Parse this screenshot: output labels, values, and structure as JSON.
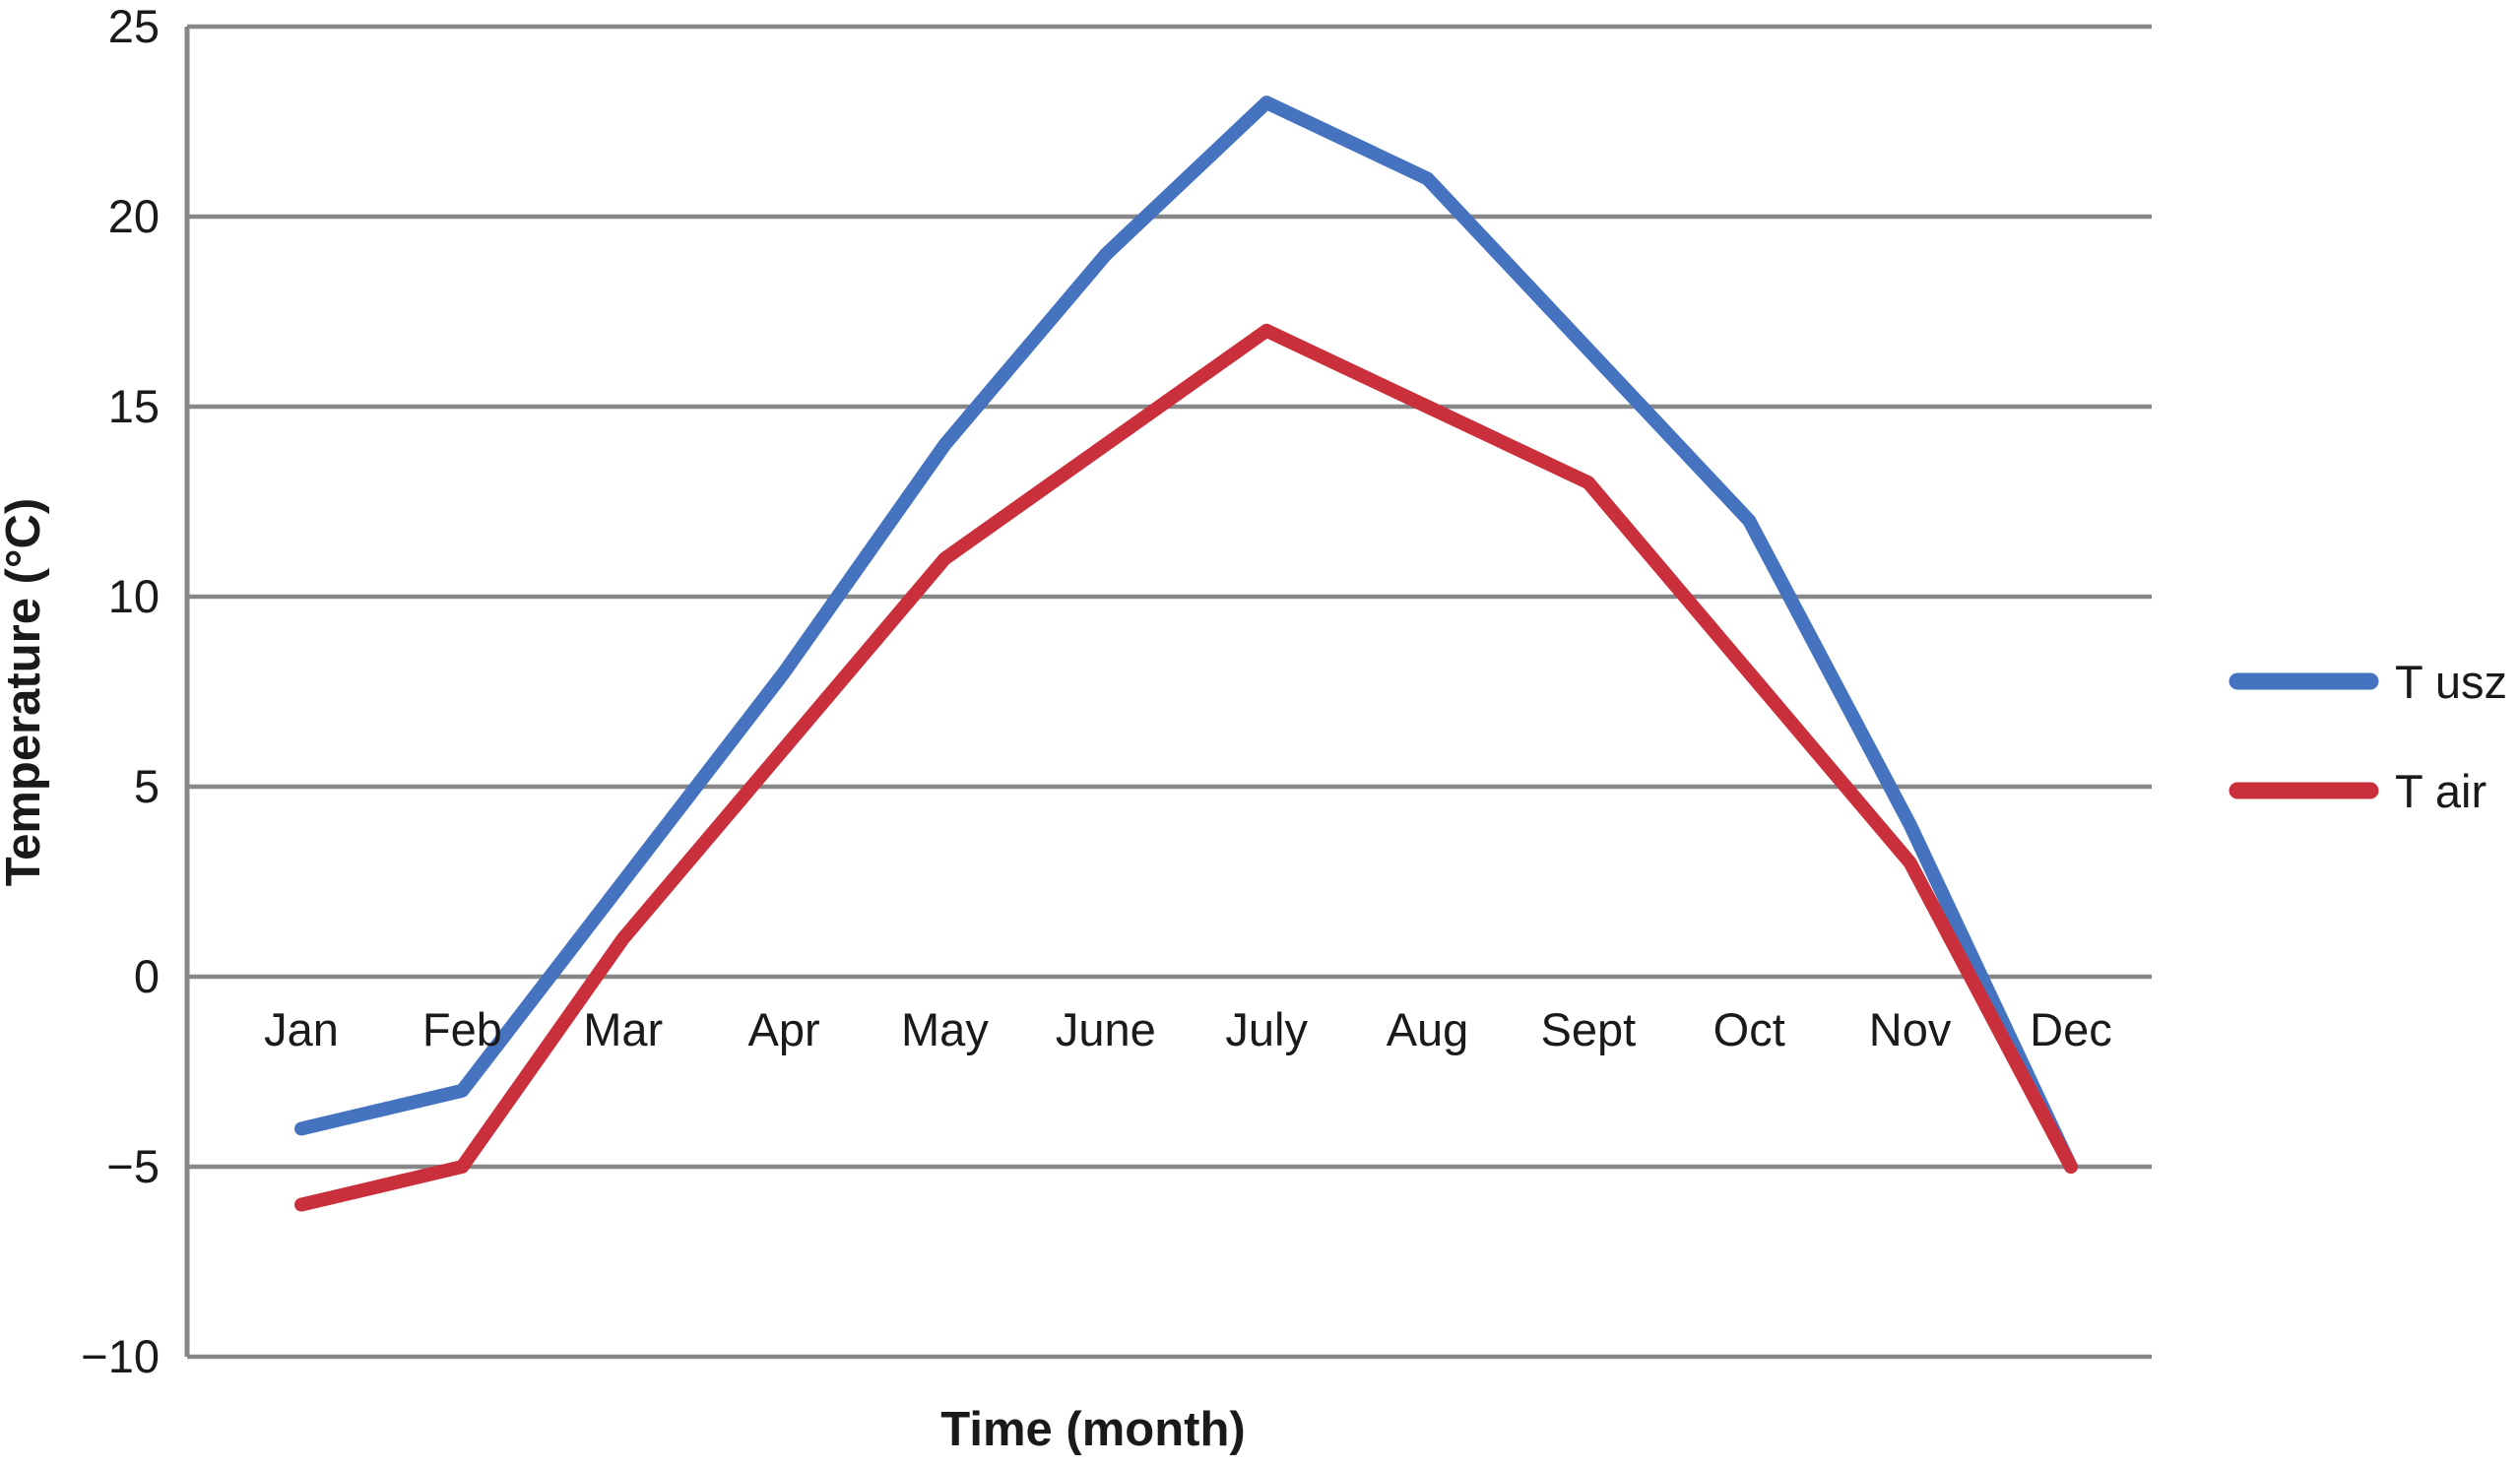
{
  "chart_data": {
    "type": "line",
    "title": "",
    "xlabel": "Time (month)",
    "ylabel": "Temperature (°C)",
    "categories": [
      "Jan",
      "Feb",
      "Mar",
      "Apr",
      "May",
      "June",
      "July",
      "Aug",
      "Sept",
      "Oct",
      "Nov",
      "Dec"
    ],
    "series": [
      {
        "name": "T usz",
        "color": "#4573bf",
        "values": [
          -4,
          -3,
          2.5,
          8,
          14,
          19,
          23,
          21,
          16.5,
          12,
          4,
          -5
        ]
      },
      {
        "name": "T air",
        "color": "#c9303c",
        "values": [
          -6,
          -5,
          1,
          6,
          11,
          14,
          17,
          15,
          13,
          8,
          3,
          -5
        ]
      }
    ],
    "y_ticks": [
      25,
      20,
      15,
      10,
      5,
      0,
      -5,
      -10
    ],
    "y_tick_labels": [
      "25",
      "20",
      "15",
      "10",
      "5",
      "0",
      "−5",
      "−10"
    ],
    "ylim": [
      -10,
      25
    ],
    "grid": true,
    "gridline_color": "#878787",
    "axis_color": "#878787",
    "legend_position": "right",
    "legend": [
      {
        "label": "T usz",
        "color": "#4573bf"
      },
      {
        "label": "T air",
        "color": "#c9303c"
      }
    ],
    "notes": "Category labels sit just below the 0 °C gridline; both series converge at −5 in Dec."
  }
}
